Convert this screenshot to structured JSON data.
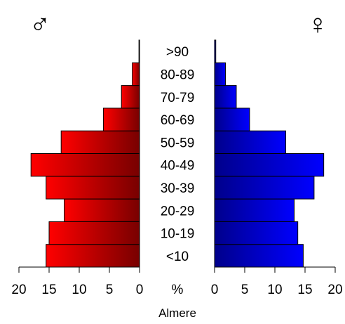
{
  "chart_data": {
    "type": "bar",
    "orientation": "horizontal-population-pyramid",
    "title": "",
    "caption": "Almere",
    "unit_label": "%",
    "male_symbol": "♂",
    "female_symbol": "♀",
    "categories": [
      "<10",
      "10-19",
      "20-29",
      "30-39",
      "40-49",
      "50-59",
      "60-69",
      "70-79",
      "80-89",
      ">90"
    ],
    "series": [
      {
        "name": "♂",
        "values": [
          15.5,
          15.0,
          12.5,
          15.5,
          18.0,
          13.0,
          6.0,
          3.0,
          1.2,
          0.1
        ],
        "color": "#ff0000"
      },
      {
        "name": "♀",
        "values": [
          14.7,
          13.8,
          13.2,
          16.5,
          18.1,
          11.8,
          5.8,
          3.6,
          1.8,
          0.2
        ],
        "color": "#0000ff"
      }
    ],
    "xlim": [
      0,
      20
    ],
    "x_ticks": [
      0,
      5,
      10,
      15,
      20
    ],
    "grid": false,
    "legend": "none"
  }
}
